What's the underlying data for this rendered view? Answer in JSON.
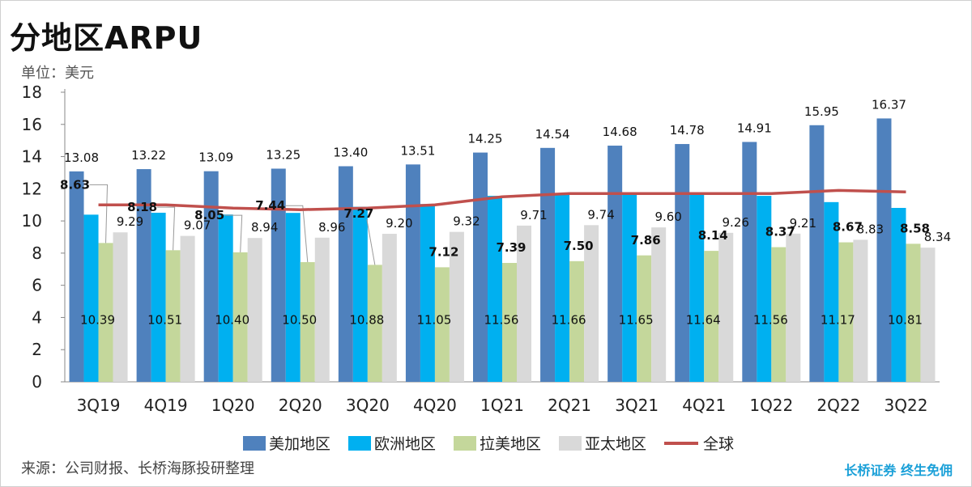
{
  "title": "分地区ARPU",
  "unit_label": "单位：美元",
  "source_label": "来源：公司财报、长桥海豚投研整理",
  "brand_label": "长桥证券 终生免佣",
  "chart_data": {
    "type": "bar",
    "categories": [
      "3Q19",
      "4Q19",
      "1Q20",
      "2Q20",
      "3Q20",
      "4Q20",
      "1Q21",
      "2Q21",
      "3Q21",
      "4Q21",
      "1Q22",
      "2Q22",
      "3Q22"
    ],
    "ylim": [
      0,
      18
    ],
    "yticks": [
      0,
      2,
      4,
      6,
      8,
      10,
      12,
      14,
      16,
      18
    ],
    "series": [
      {
        "name": "美加地区",
        "color": "#4f81bd",
        "values": [
          13.08,
          13.22,
          13.09,
          13.25,
          13.4,
          13.51,
          14.25,
          14.54,
          14.68,
          14.78,
          14.91,
          15.95,
          16.37
        ]
      },
      {
        "name": "欧洲地区",
        "color": "#00b0f0",
        "values": [
          10.39,
          10.51,
          10.4,
          10.5,
          10.88,
          11.05,
          11.56,
          11.66,
          11.65,
          11.64,
          11.56,
          11.17,
          10.81
        ]
      },
      {
        "name": "拉美地区",
        "color": "#c4d79b",
        "values": [
          8.63,
          8.18,
          8.05,
          7.44,
          7.27,
          7.12,
          7.39,
          7.5,
          7.86,
          8.14,
          8.37,
          8.67,
          8.58
        ]
      },
      {
        "name": "亚太地区",
        "color": "#d9d9d9",
        "values": [
          9.29,
          9.07,
          8.94,
          8.96,
          9.2,
          9.32,
          9.71,
          9.74,
          9.6,
          9.26,
          9.21,
          8.83,
          8.34
        ]
      },
      {
        "name": "全球",
        "type": "line",
        "color": "#c0504d",
        "values": [
          11.0,
          11.0,
          10.8,
          10.7,
          10.8,
          11.0,
          11.5,
          11.7,
          11.7,
          11.7,
          11.7,
          11.9,
          11.8
        ]
      }
    ],
    "legend_position": "bottom"
  }
}
